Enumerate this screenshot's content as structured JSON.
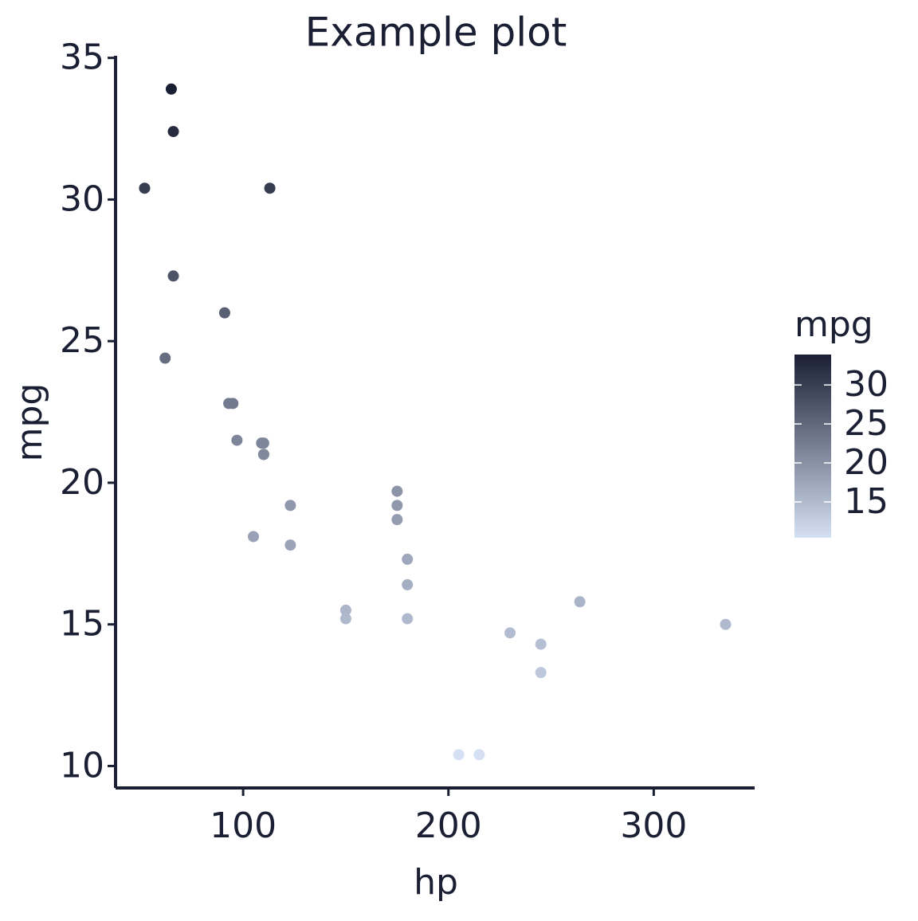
{
  "chart_data": {
    "type": "scatter",
    "title": "Example plot",
    "x_label": "hp",
    "y_label": "mpg",
    "series": [
      {
        "name": "mpg",
        "x": [
          110,
          110,
          93,
          110,
          175,
          105,
          245,
          62,
          95,
          123,
          123,
          180,
          180,
          180,
          205,
          215,
          230,
          66,
          52,
          65,
          97,
          150,
          150,
          245,
          175,
          66,
          91,
          113,
          264,
          175,
          335,
          109
        ],
        "y": [
          21.0,
          21.0,
          22.8,
          21.4,
          18.7,
          18.1,
          14.3,
          24.4,
          22.8,
          19.2,
          17.8,
          16.4,
          17.3,
          15.2,
          10.4,
          10.4,
          14.7,
          32.4,
          30.4,
          33.9,
          21.5,
          15.5,
          15.2,
          13.3,
          19.2,
          27.3,
          26.0,
          30.4,
          15.8,
          19.7,
          15.0,
          21.4
        ]
      }
    ],
    "xlim": [
      37.85,
      349.15
    ],
    "xticks": [
      100,
      200,
      300
    ],
    "ylim": [
      9.225,
      35.075
    ],
    "yticks": [
      10,
      15,
      20,
      25,
      30,
      35
    ],
    "grid": false,
    "colorbar": {
      "title": "mpg",
      "ticks": [
        15,
        20,
        25,
        30
      ],
      "color_low": "#d5e0f5",
      "color_high": "#1a1f33"
    }
  }
}
